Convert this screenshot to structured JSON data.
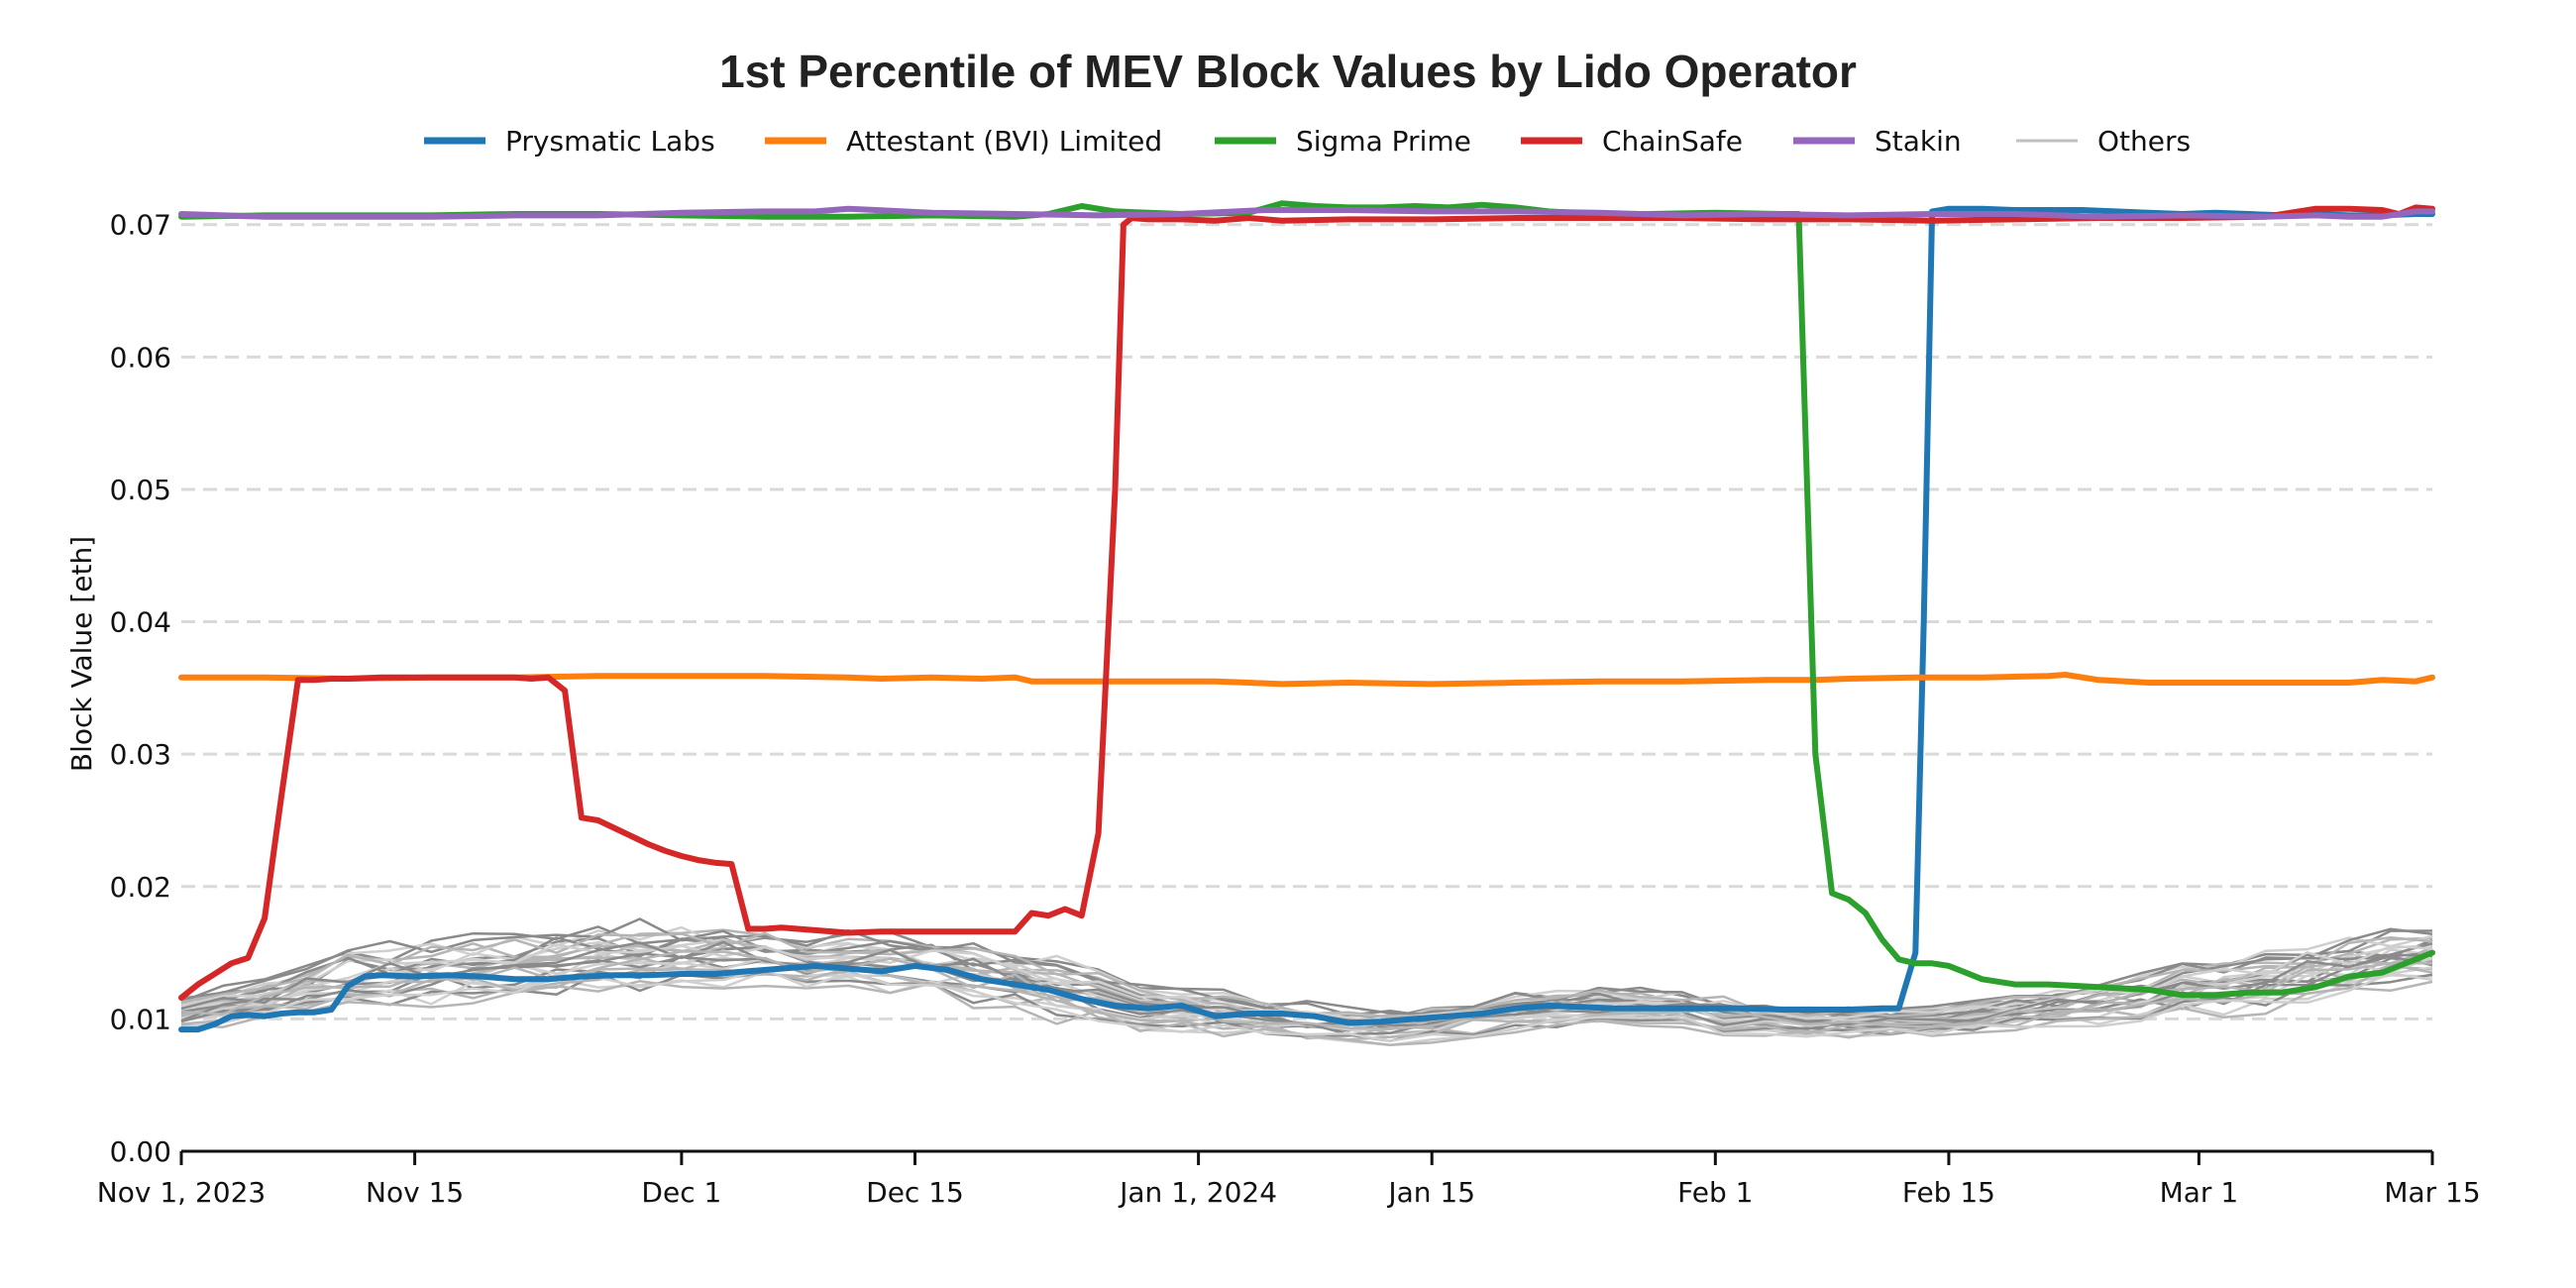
{
  "chart_data": {
    "type": "line",
    "title": "1st Percentile of MEV Block Values by Lido Operator",
    "xlabel": "",
    "ylabel": "Block Value [eth]",
    "xlim": [
      0,
      135
    ],
    "ylim": [
      0,
      0.072
    ],
    "x_unit": "days since Nov 1, 2023",
    "grid": "horizontal dashed",
    "legend_position": "top-center",
    "yticks": [
      {
        "value": 0.0,
        "label": "0.00"
      },
      {
        "value": 0.01,
        "label": "0.01"
      },
      {
        "value": 0.02,
        "label": "0.02"
      },
      {
        "value": 0.03,
        "label": "0.03"
      },
      {
        "value": 0.04,
        "label": "0.04"
      },
      {
        "value": 0.05,
        "label": "0.05"
      },
      {
        "value": 0.06,
        "label": "0.06"
      },
      {
        "value": 0.07,
        "label": "0.07"
      }
    ],
    "xticks": [
      {
        "value": 0,
        "label": "Nov 1, 2023"
      },
      {
        "value": 14,
        "label": "Nov 15"
      },
      {
        "value": 30,
        "label": "Dec 1"
      },
      {
        "value": 44,
        "label": "Dec 15"
      },
      {
        "value": 61,
        "label": "Jan 1, 2024"
      },
      {
        "value": 75,
        "label": "Jan 15"
      },
      {
        "value": 92,
        "label": "Feb 1"
      },
      {
        "value": 106,
        "label": "Feb 15"
      },
      {
        "value": 121,
        "label": "Mar 1"
      },
      {
        "value": 135,
        "label": "Mar 15"
      }
    ],
    "series": [
      {
        "name": "Prysmatic Labs",
        "color": "#1f77b4",
        "x": [
          0,
          1,
          2,
          3,
          4,
          5,
          6,
          7,
          8,
          9,
          10,
          11,
          12,
          14,
          16,
          18,
          20,
          22,
          24,
          26,
          28,
          30,
          32,
          34,
          36,
          38,
          40,
          42,
          44,
          46,
          48,
          50,
          52,
          54,
          56,
          58,
          60,
          62,
          64,
          66,
          68,
          70,
          72,
          74,
          76,
          78,
          80,
          82,
          84,
          86,
          88,
          90,
          92,
          94,
          96,
          98,
          100,
          102,
          103,
          104,
          104.5,
          105,
          106,
          107,
          108,
          110,
          112,
          114,
          116,
          118,
          120,
          122,
          124,
          126,
          128,
          130,
          132,
          134,
          135
        ],
        "y": [
          0.0092,
          0.0092,
          0.0096,
          0.0102,
          0.0103,
          0.0102,
          0.0104,
          0.0105,
          0.0105,
          0.0107,
          0.0125,
          0.0132,
          0.0133,
          0.0132,
          0.0133,
          0.0132,
          0.013,
          0.013,
          0.0132,
          0.0133,
          0.0133,
          0.0134,
          0.0134,
          0.0136,
          0.0138,
          0.014,
          0.0138,
          0.0136,
          0.014,
          0.0137,
          0.013,
          0.0126,
          0.0122,
          0.0115,
          0.011,
          0.0108,
          0.011,
          0.0102,
          0.0104,
          0.0104,
          0.0102,
          0.0097,
          0.0098,
          0.01,
          0.0102,
          0.0104,
          0.0108,
          0.011,
          0.0109,
          0.0108,
          0.0108,
          0.0108,
          0.0108,
          0.0108,
          0.0107,
          0.0107,
          0.0107,
          0.0108,
          0.0108,
          0.015,
          0.04,
          0.071,
          0.0712,
          0.0712,
          0.0712,
          0.0711,
          0.0711,
          0.0711,
          0.071,
          0.0709,
          0.0708,
          0.0709,
          0.0708,
          0.0707,
          0.0708,
          0.0707,
          0.0707,
          0.0708,
          0.0708
        ]
      },
      {
        "name": "Attestant (BVI) Limited",
        "color": "#ff7f0e",
        "x": [
          0,
          5,
          10,
          15,
          20,
          25,
          30,
          35,
          40,
          42,
          45,
          48,
          50,
          51,
          55,
          60,
          62,
          64,
          66,
          70,
          75,
          80,
          85,
          90,
          95,
          98,
          100,
          104,
          108,
          112,
          113,
          115,
          118,
          122,
          126,
          130,
          132,
          134,
          135
        ],
        "y": [
          0.0358,
          0.0358,
          0.0357,
          0.0358,
          0.0358,
          0.0359,
          0.0359,
          0.0359,
          0.0358,
          0.0357,
          0.0358,
          0.0357,
          0.0358,
          0.0355,
          0.0355,
          0.0355,
          0.0355,
          0.0354,
          0.0353,
          0.0354,
          0.0353,
          0.0354,
          0.0355,
          0.0355,
          0.0356,
          0.0356,
          0.0357,
          0.0358,
          0.0358,
          0.0359,
          0.036,
          0.0356,
          0.0354,
          0.0354,
          0.0354,
          0.0354,
          0.0356,
          0.0355,
          0.0358
        ]
      },
      {
        "name": "Sigma Prime",
        "color": "#2ca02c",
        "x": [
          0,
          5,
          10,
          15,
          20,
          25,
          30,
          35,
          40,
          45,
          50,
          52,
          54,
          56,
          60,
          64,
          66,
          68,
          70,
          72,
          74,
          76,
          78,
          80,
          82,
          85,
          88,
          92,
          96,
          97,
          98,
          99,
          100,
          101,
          102,
          103,
          104,
          105,
          106,
          107,
          108,
          110,
          112,
          115,
          118,
          120,
          122,
          124,
          126,
          128,
          130,
          132,
          133,
          134,
          135
        ],
        "y": [
          0.0706,
          0.0707,
          0.0707,
          0.0707,
          0.0708,
          0.0708,
          0.0707,
          0.0706,
          0.0706,
          0.0707,
          0.0706,
          0.0708,
          0.0714,
          0.071,
          0.0708,
          0.0709,
          0.0716,
          0.0714,
          0.0713,
          0.0713,
          0.0714,
          0.0713,
          0.0715,
          0.0713,
          0.071,
          0.0708,
          0.0708,
          0.0709,
          0.0708,
          0.0708,
          0.03,
          0.0195,
          0.019,
          0.018,
          0.016,
          0.0145,
          0.0142,
          0.0142,
          0.014,
          0.0135,
          0.013,
          0.0126,
          0.0126,
          0.0124,
          0.0122,
          0.0118,
          0.0118,
          0.012,
          0.012,
          0.0124,
          0.0132,
          0.0135,
          0.014,
          0.0145,
          0.015
        ]
      },
      {
        "name": "ChainSafe",
        "color": "#d62728",
        "x": [
          0,
          1,
          2,
          3,
          4,
          5,
          6,
          7,
          8,
          9,
          10,
          12,
          14,
          16,
          18,
          20,
          21,
          22,
          23,
          24,
          25,
          26,
          27,
          28,
          29,
          30,
          31,
          32,
          33,
          34,
          35,
          36,
          38,
          40,
          42,
          44,
          46,
          48,
          50,
          51,
          52,
          53,
          54,
          55,
          56,
          56.5,
          57,
          58,
          60,
          62,
          64,
          66,
          70,
          75,
          80,
          85,
          90,
          95,
          100,
          105,
          110,
          115,
          120,
          125,
          128,
          130,
          132,
          133,
          134,
          135
        ],
        "y": [
          0.0116,
          0.0126,
          0.0134,
          0.0142,
          0.0146,
          0.0176,
          0.0268,
          0.0356,
          0.0356,
          0.0357,
          0.0357,
          0.0358,
          0.0358,
          0.0358,
          0.0358,
          0.0358,
          0.0357,
          0.0358,
          0.0348,
          0.0252,
          0.025,
          0.0244,
          0.0238,
          0.0232,
          0.0227,
          0.0223,
          0.022,
          0.0218,
          0.0217,
          0.0168,
          0.0168,
          0.0169,
          0.0167,
          0.0165,
          0.0166,
          0.0166,
          0.0166,
          0.0166,
          0.0166,
          0.018,
          0.0178,
          0.0183,
          0.0178,
          0.024,
          0.05,
          0.07,
          0.0705,
          0.0704,
          0.0704,
          0.0703,
          0.0705,
          0.0703,
          0.0704,
          0.0704,
          0.0705,
          0.0705,
          0.0705,
          0.0704,
          0.0704,
          0.0703,
          0.0704,
          0.0705,
          0.0705,
          0.0706,
          0.0712,
          0.0712,
          0.0711,
          0.0708,
          0.0713,
          0.0712
        ]
      },
      {
        "name": "Stakin",
        "color": "#9467bd",
        "x": [
          0,
          5,
          10,
          15,
          20,
          25,
          30,
          35,
          38,
          40,
          45,
          50,
          55,
          60,
          65,
          70,
          75,
          80,
          85,
          90,
          95,
          100,
          105,
          110,
          115,
          120,
          125,
          128,
          130,
          132,
          134,
          135
        ],
        "y": [
          0.0708,
          0.0706,
          0.0706,
          0.0706,
          0.0707,
          0.0707,
          0.0709,
          0.071,
          0.071,
          0.0712,
          0.0709,
          0.0708,
          0.0707,
          0.0708,
          0.0711,
          0.0711,
          0.071,
          0.071,
          0.0709,
          0.0707,
          0.0708,
          0.0707,
          0.0708,
          0.0708,
          0.0706,
          0.0707,
          0.0706,
          0.0707,
          0.0706,
          0.0706,
          0.071,
          0.071
        ]
      },
      {
        "name": "Others",
        "color": "#bfbfbf",
        "is_group": true
      }
    ],
    "others_envelope": {
      "x": [
        0,
        5,
        10,
        15,
        20,
        25,
        30,
        35,
        40,
        45,
        50,
        55,
        60,
        65,
        70,
        75,
        80,
        85,
        90,
        95,
        100,
        105,
        110,
        115,
        120,
        125,
        130,
        135
      ],
      "center": [
        0.0106,
        0.0115,
        0.013,
        0.0135,
        0.014,
        0.0145,
        0.0148,
        0.0148,
        0.0145,
        0.014,
        0.013,
        0.0118,
        0.0108,
        0.01,
        0.0095,
        0.0097,
        0.0105,
        0.011,
        0.0108,
        0.01,
        0.0098,
        0.0098,
        0.0105,
        0.0112,
        0.012,
        0.013,
        0.014,
        0.015
      ],
      "spread": [
        0.0012,
        0.0015,
        0.002,
        0.0022,
        0.0022,
        0.0022,
        0.002,
        0.0018,
        0.0018,
        0.002,
        0.002,
        0.0018,
        0.0015,
        0.0012,
        0.0012,
        0.0012,
        0.0012,
        0.0012,
        0.0012,
        0.001,
        0.001,
        0.001,
        0.0012,
        0.0015,
        0.0018,
        0.002,
        0.002,
        0.002
      ],
      "count": 26
    }
  }
}
